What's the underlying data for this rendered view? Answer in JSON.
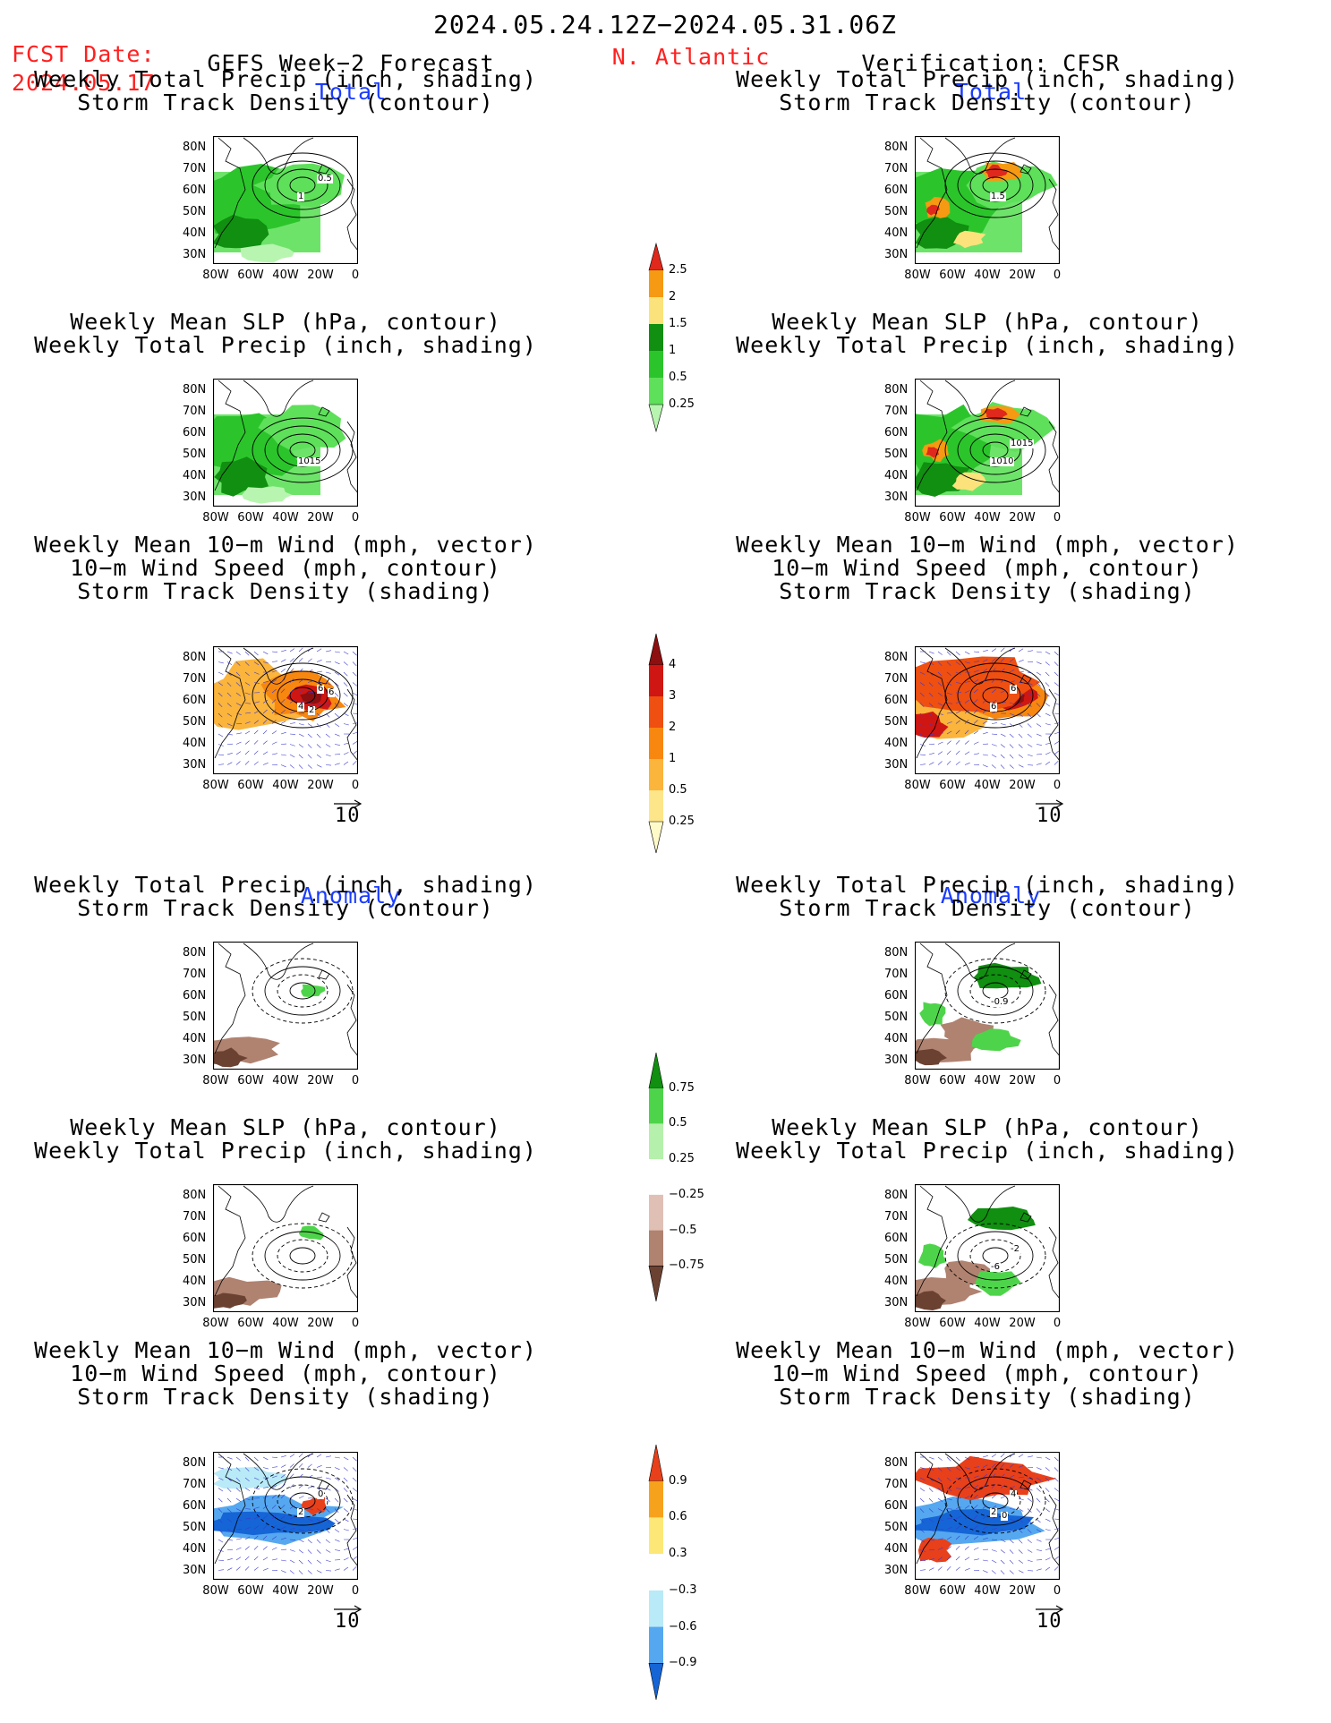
{
  "header": {
    "date_range": "2024.05.24.12Z−2024.05.31.06Z",
    "fcst_label": "FCST Date:",
    "fcst_date": "2024.05.17",
    "forecast_title": "GEFS Week−2 Forecast",
    "region": "N. Atlantic",
    "verification": "Verification: CFSR"
  },
  "sections": {
    "total": "Total",
    "anomaly": "Anomaly"
  },
  "panel_titles": {
    "precip_track": [
      "Weekly Total Precip (inch, shading)",
      "Storm Track Density (contour)"
    ],
    "slp_precip": [
      "Weekly Mean SLP (hPa, contour)",
      "Weekly Total Precip (inch, shading)"
    ],
    "wind_track": [
      "Weekly Mean 10−m Wind (mph, vector)",
      "10−m Wind Speed (mph, contour)",
      "Storm Track Density (shading)"
    ]
  },
  "axes": {
    "lat_ticks": [
      "80N",
      "70N",
      "60N",
      "50N",
      "40N",
      "30N"
    ],
    "lon_ticks": [
      "80W",
      "60W",
      "40W",
      "20W",
      "0"
    ]
  },
  "vector_ref": "10",
  "contour_labels": {
    "fcst_total_precip": [
      "1",
      "0.5"
    ],
    "fcst_total_slp": [
      "1015"
    ],
    "fcst_total_wind": [
      "4",
      "6",
      "2",
      "6"
    ],
    "obs_total_precip": [
      "1.5"
    ],
    "obs_total_slp": [
      "1010",
      "1015"
    ],
    "obs_total_wind": [
      "6",
      "6"
    ],
    "obs_anom_precip": [
      "-0.9"
    ],
    "obs_anom_slp": [
      "-6",
      "-2"
    ],
    "fcst_anom_wind": [
      "2",
      "0"
    ],
    "obs_anom_wind": [
      "2",
      "4",
      "0"
    ]
  },
  "colorbars": {
    "precip_total": {
      "labels": [
        "0.25",
        "0.5",
        "1",
        "1.5",
        "2",
        "2.5"
      ],
      "colors": [
        "#b8f5b0",
        "#5ee05a",
        "#2bc52b",
        "#108f10",
        "#fbe27a",
        "#f59a12",
        "#e0281c"
      ]
    },
    "track_total": {
      "labels": [
        "0.25",
        "0.5",
        "1",
        "2",
        "3",
        "4"
      ],
      "colors": [
        "#fffbc9",
        "#fde58a",
        "#fbb43c",
        "#f8870f",
        "#ef4f10",
        "#d01612",
        "#8d0f0f"
      ]
    },
    "precip_anom": {
      "labels": [
        "0.75",
        "0.5",
        "0.25",
        "−0.25",
        "−0.5",
        "−0.75"
      ],
      "colors": [
        "#108f10",
        "#4ed44a",
        "#b5f0ac",
        "#ffffff",
        "#e0c0b5",
        "#b08270",
        "#6b4232"
      ]
    },
    "track_anom": {
      "labels": [
        "0.9",
        "0.6",
        "0.3",
        "−0.3",
        "−0.6",
        "−0.9"
      ],
      "colors": [
        "#e8401a",
        "#f7a21c",
        "#fde877",
        "#ffffff",
        "#b9eaf7",
        "#55a8f0",
        "#1565d6"
      ]
    }
  },
  "colors": {
    "title_red": "#ff2020",
    "section_blue": "#1a3cff"
  }
}
